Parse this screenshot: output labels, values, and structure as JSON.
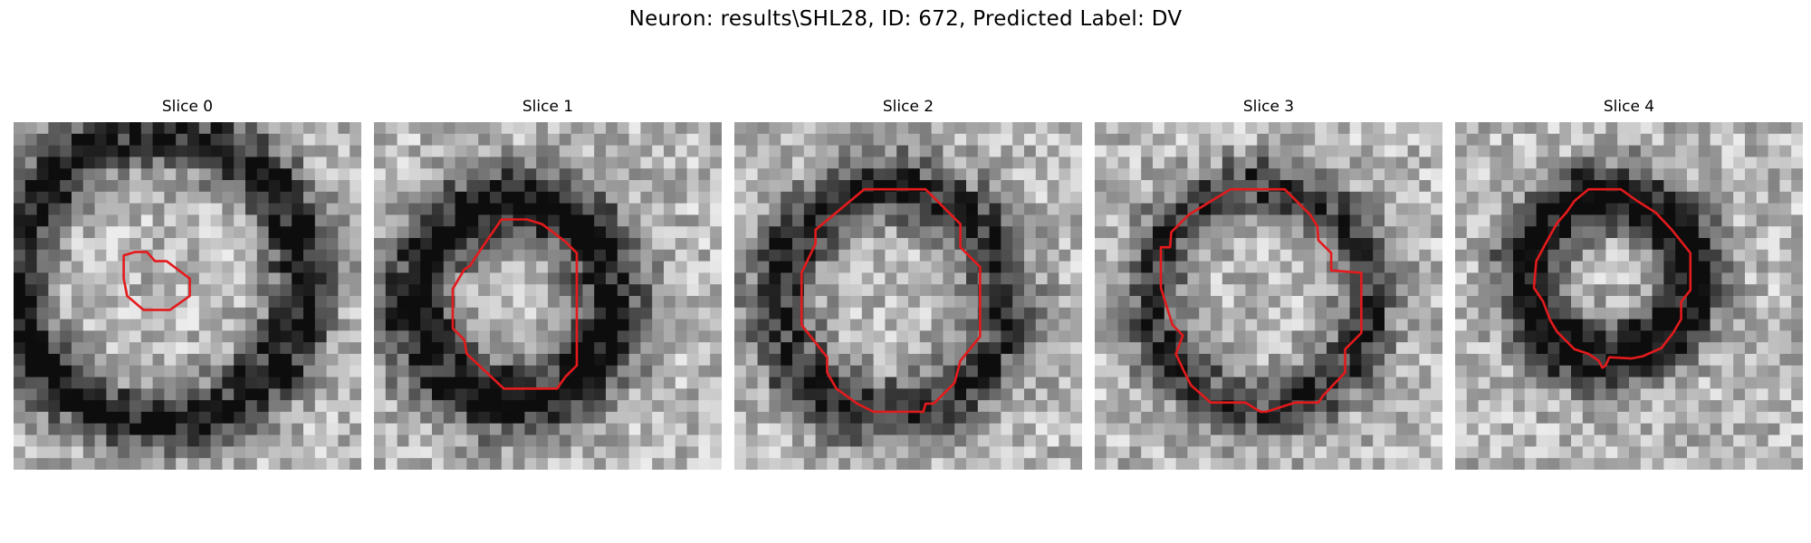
{
  "figure": {
    "title": "Neuron: results\\SHL28, ID: 672, Predicted Label: DV"
  },
  "panels": [
    {
      "label": "Slice 0"
    },
    {
      "label": "Slice 1"
    },
    {
      "label": "Slice 2"
    },
    {
      "label": "Slice 3"
    },
    {
      "label": "Slice 4"
    }
  ],
  "style": {
    "contour_color": "#e41a1c"
  }
}
